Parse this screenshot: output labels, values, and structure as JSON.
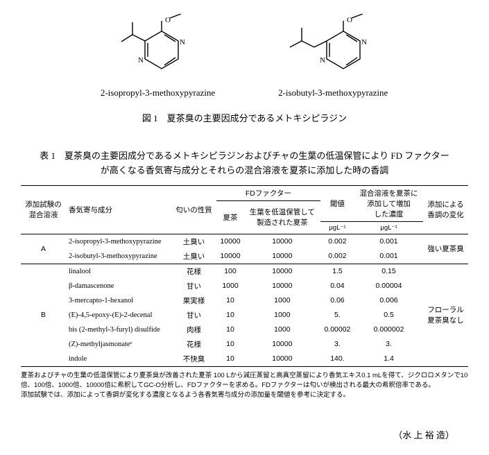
{
  "molecules": [
    {
      "label": "2-isopropyl-3-methoxypyrazine"
    },
    {
      "label": "2-isobutyl-3-methoxypyrazine"
    }
  ],
  "figure_caption": "図 1　夏茶臭の主要因成分であるメトキシピラジン",
  "table_caption": "表 1　夏茶臭の主要因成分であるメトキシピラジンおよびチャの生葉の低温保管により FD ファクターが高くなる香気寄与成分とそれらの混合溶液を夏茶に添加した時の香調",
  "headers": {
    "mix": "添加試験の\n混合溶液",
    "aroma_comp": "香気寄与成分",
    "odor_quality": "匂いの性質",
    "fd_factor": "FDファクター",
    "fd_summer": "夏茶",
    "fd_cold": "生葉を低温保管して\n製造された夏茶",
    "threshold": "閾値",
    "added_conc": "混合溶液を夏茶に\n添加して増加\nした濃度",
    "aroma_change": "添加による\n香調の変化",
    "unit": "μgL⁻¹"
  },
  "groups": [
    {
      "label": "A",
      "aroma_change": "強い夏茶臭",
      "rows": [
        {
          "comp": "2-isopropyl-3-methoxypyrazine",
          "odor": "土臭い",
          "fd1": "10000",
          "fd2": "10000",
          "thr": "0.002",
          "conc": "0.001"
        },
        {
          "comp": "2-isobutyl-3-methoxypyrazine",
          "odor": "土臭い",
          "fd1": "10000",
          "fd2": "10000",
          "thr": "0.002",
          "conc": "0.001"
        }
      ]
    },
    {
      "label": "B",
      "aroma_change": "フローラル\n夏茶臭なし",
      "rows": [
        {
          "comp": "linalool",
          "odor": "花様",
          "fd1": "100",
          "fd2": "10000",
          "thr": "1.5",
          "conc": "0.15"
        },
        {
          "comp": "β-damascenone",
          "odor": "甘い",
          "fd1": "1000",
          "fd2": "10000",
          "thr": "0.04",
          "conc": "0.00004"
        },
        {
          "comp": "3-mercapto-1-hexanol",
          "odor": "果実様",
          "fd1": "10",
          "fd2": "1000",
          "thr": "0.06",
          "conc": "0.006"
        },
        {
          "comp": "(E)-4,5-epoxy-(E)-2-decenal",
          "odor": "甘い",
          "fd1": "10",
          "fd2": "1000",
          "thr": "5.",
          "conc": "0.5"
        },
        {
          "comp": "bis (2-methyl-3-furyl) disulfide",
          "odor": "肉様",
          "fd1": "10",
          "fd2": "1000",
          "thr": "0.00002",
          "conc": "0.000002"
        },
        {
          "comp": "(Z)-methyljasmonateᵉ",
          "odor": "花様",
          "fd1": "10",
          "fd2": "10000",
          "thr": "3.",
          "conc": "3."
        },
        {
          "comp": "indole",
          "odor": "不快臭",
          "fd1": "10",
          "fd2": "10000",
          "thr": "140.",
          "conc": "1.4"
        }
      ]
    }
  ],
  "footnotes": [
    "夏茶およびチャの生葉の低温保管により夏茶臭が改善された夏茶 100 Lから減圧蒸留と高真空蒸留により香気エキス0.1 mLを得て、ジクロロメタンで10倍、100倍、1000倍、10000倍に希釈してGC-O分析し、FDファクターを求める。FDファクターは匂いが検出される最大の希釈倍率である。",
    "添加試験では、添加によって香調が変化する濃度となるよう各香気寄与成分の添加量を閾値を参考に決定する。"
  ],
  "author": "（水 上 裕 造）"
}
